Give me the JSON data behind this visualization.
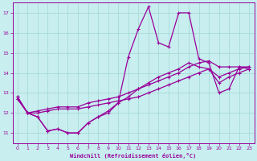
{
  "xlabel": "Windchill (Refroidissement éolien,°C)",
  "bg_color": "#c8eef0",
  "line_color": "#990099",
  "grid_color": "#a0d8d0",
  "xlim": [
    -0.5,
    23.5
  ],
  "ylim": [
    10.5,
    17.5
  ],
  "xticks": [
    0,
    1,
    2,
    3,
    4,
    5,
    6,
    7,
    8,
    9,
    10,
    11,
    12,
    13,
    14,
    15,
    16,
    17,
    18,
    19,
    20,
    21,
    22,
    23
  ],
  "yticks": [
    11,
    12,
    13,
    14,
    15,
    16,
    17
  ],
  "line1_x": [
    0,
    1,
    2,
    3,
    4,
    5,
    6,
    7,
    8,
    9,
    10,
    11,
    12,
    13,
    14,
    15,
    16,
    17,
    18,
    19,
    20,
    21,
    22,
    23
  ],
  "line1_y": [
    12.8,
    12.0,
    11.8,
    11.1,
    11.2,
    11.0,
    11.0,
    11.5,
    11.8,
    12.0,
    12.5,
    14.8,
    16.2,
    17.3,
    15.5,
    15.3,
    17.0,
    17.0,
    14.7,
    14.5,
    13.0,
    13.2,
    14.3,
    14.2
  ],
  "line2_x": [
    0,
    1,
    2,
    3,
    4,
    5,
    6,
    7,
    8,
    9,
    10,
    11,
    12,
    13,
    14,
    15,
    16,
    17,
    18,
    19,
    20,
    21,
    22,
    23
  ],
  "line2_y": [
    12.8,
    12.0,
    11.8,
    11.1,
    11.2,
    11.0,
    11.0,
    11.5,
    11.8,
    12.1,
    12.5,
    12.8,
    13.2,
    13.5,
    13.8,
    14.0,
    14.2,
    14.5,
    14.3,
    14.2,
    13.8,
    14.0,
    14.2,
    14.3
  ],
  "line3_x": [
    0,
    1,
    2,
    3,
    4,
    5,
    6,
    7,
    8,
    9,
    10,
    11,
    12,
    13,
    14,
    15,
    16,
    17,
    18,
    19,
    20,
    21,
    22,
    23
  ],
  "line3_y": [
    12.7,
    12.0,
    12.0,
    12.1,
    12.2,
    12.2,
    12.2,
    12.3,
    12.4,
    12.5,
    12.6,
    12.7,
    12.8,
    13.0,
    13.2,
    13.4,
    13.6,
    13.8,
    14.0,
    14.2,
    13.5,
    13.8,
    14.0,
    14.2
  ],
  "line4_x": [
    0,
    1,
    2,
    3,
    4,
    5,
    6,
    7,
    8,
    9,
    10,
    11,
    12,
    13,
    14,
    15,
    16,
    17,
    18,
    19,
    20,
    21,
    22,
    23
  ],
  "line4_y": [
    12.7,
    12.0,
    12.1,
    12.2,
    12.3,
    12.3,
    12.3,
    12.5,
    12.6,
    12.7,
    12.8,
    13.0,
    13.2,
    13.4,
    13.6,
    13.8,
    14.0,
    14.3,
    14.5,
    14.6,
    14.3,
    14.3,
    14.3,
    14.3
  ]
}
